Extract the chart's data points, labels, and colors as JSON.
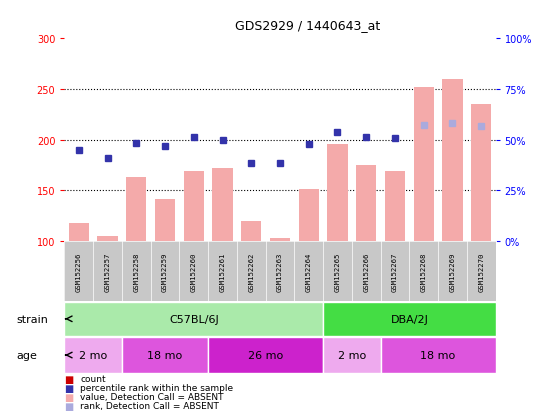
{
  "title": "GDS2929 / 1440643_at",
  "samples": [
    "GSM152256",
    "GSM152257",
    "GSM152258",
    "GSM152259",
    "GSM152260",
    "GSM152261",
    "GSM152262",
    "GSM152263",
    "GSM152264",
    "GSM152265",
    "GSM152266",
    "GSM152267",
    "GSM152268",
    "GSM152269",
    "GSM152270"
  ],
  "bar_values": [
    118,
    105,
    163,
    142,
    169,
    172,
    120,
    103,
    151,
    196,
    175,
    169,
    252,
    260,
    235
  ],
  "bar_absent": [
    true,
    true,
    true,
    true,
    true,
    true,
    true,
    true,
    true,
    true,
    true,
    true,
    true,
    true,
    true
  ],
  "scatter_values": [
    190,
    182,
    197,
    194,
    203,
    200,
    177,
    177,
    196,
    208,
    203,
    202,
    215,
    217,
    214
  ],
  "scatter_absent": [
    false,
    false,
    false,
    false,
    false,
    false,
    false,
    false,
    false,
    false,
    false,
    false,
    true,
    true,
    true
  ],
  "bar_color_present": "#cc0000",
  "bar_color_absent": "#f4aaaa",
  "scatter_color_present": "#3333aa",
  "scatter_color_absent": "#aaaadd",
  "ylim_left": [
    100,
    300
  ],
  "ylim_right": [
    0,
    100
  ],
  "yticks_left": [
    100,
    150,
    200,
    250,
    300
  ],
  "yticks_right": [
    0,
    25,
    50,
    75,
    100
  ],
  "ytick_labels_right": [
    "0%",
    "25%",
    "50%",
    "75%",
    "100%"
  ],
  "strain_groups": [
    {
      "label": "C57BL/6J",
      "start": 0,
      "end": 8,
      "color": "#aaeaaa"
    },
    {
      "label": "DBA/2J",
      "start": 9,
      "end": 14,
      "color": "#44dd44"
    }
  ],
  "age_groups": [
    {
      "label": "2 mo",
      "start": 0,
      "end": 1,
      "color": "#eeaaee"
    },
    {
      "label": "18 mo",
      "start": 2,
      "end": 4,
      "color": "#dd55dd"
    },
    {
      "label": "26 mo",
      "start": 5,
      "end": 8,
      "color": "#cc22cc"
    },
    {
      "label": "2 mo",
      "start": 9,
      "end": 10,
      "color": "#eeaaee"
    },
    {
      "label": "18 mo",
      "start": 11,
      "end": 14,
      "color": "#dd55dd"
    }
  ],
  "label_bg_color": "#c8c8c8",
  "bg_color": "#ffffff",
  "bar_width": 0.7,
  "n_samples": 15,
  "legend_items": [
    {
      "color": "#cc0000",
      "label": "count"
    },
    {
      "color": "#3333aa",
      "label": "percentile rank within the sample"
    },
    {
      "color": "#f4aaaa",
      "label": "value, Detection Call = ABSENT"
    },
    {
      "color": "#aaaadd",
      "label": "rank, Detection Call = ABSENT"
    }
  ]
}
